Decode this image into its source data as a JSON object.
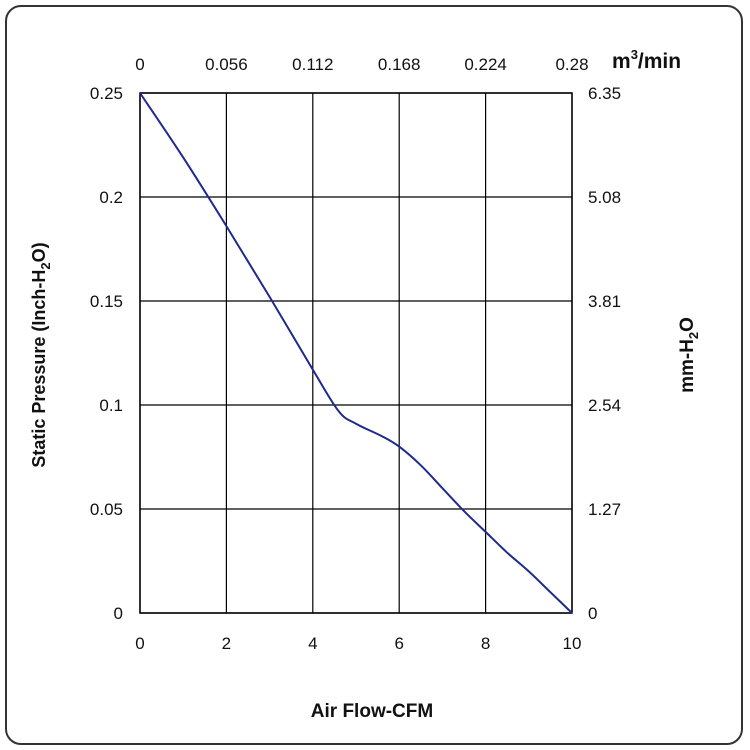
{
  "chart_data": {
    "type": "line",
    "xlabel": "Air Flow-CFM",
    "ylabel_main": "Static Pressure (Inch-H",
    "ylabel_sub": "2",
    "ylabel_end": "O)",
    "x2label_main": "m",
    "x2label_sup": "3",
    "x2label_end": "/min",
    "y2label_main": "mm-H",
    "y2label_sub": "2",
    "y2label_end": "O",
    "xlim": [
      0,
      10
    ],
    "ylim": [
      0,
      0.25
    ],
    "x_ticks": [
      "0",
      "2",
      "4",
      "6",
      "8",
      "10"
    ],
    "y_ticks": [
      "0",
      "0.05",
      "0.1",
      "0.15",
      "0.2",
      "0.25"
    ],
    "x2_ticks": [
      "0",
      "0.056",
      "0.112",
      "0.168",
      "0.224",
      "0.28"
    ],
    "y2_ticks": [
      "0",
      "1.27",
      "2.54",
      "3.81",
      "5.08",
      "6.35"
    ],
    "grid": true,
    "line_color": "#1f2a8c",
    "series": [
      {
        "x": [
          0,
          1,
          2,
          3,
          4,
          4.6,
          5,
          5.6,
          6,
          6.5,
          7,
          7.5,
          8,
          8.5,
          9,
          9.5,
          10
        ],
        "values": [
          0.25,
          0.219,
          0.186,
          0.152,
          0.117,
          0.097,
          0.091,
          0.085,
          0.08,
          0.071,
          0.06,
          0.049,
          0.039,
          0.029,
          0.02,
          0.01,
          0
        ]
      }
    ]
  }
}
